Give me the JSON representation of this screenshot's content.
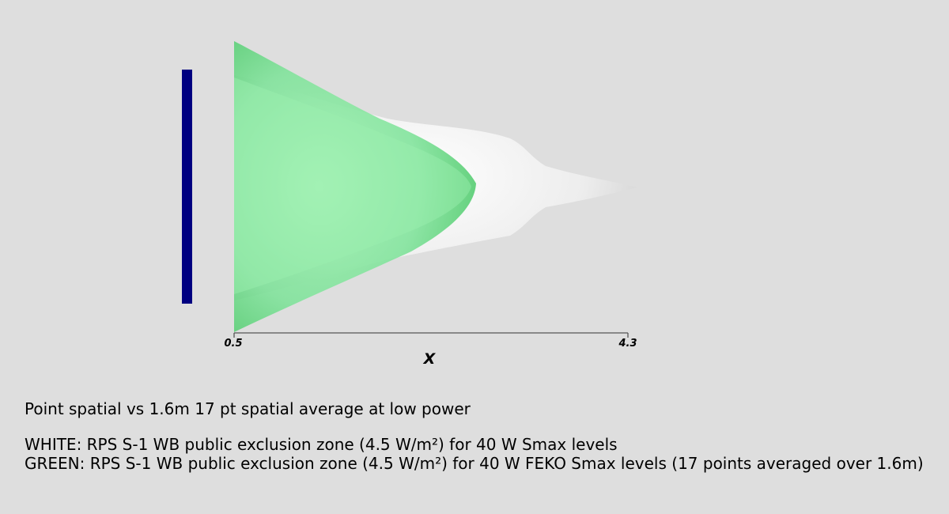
{
  "axis": {
    "label": "X",
    "ticks": [
      "0.5",
      "4.3"
    ]
  },
  "caption": {
    "title": "Point spatial vs 1.6m 17 pt spatial average at low power",
    "white_line": "WHITE: RPS S-1 WB public exclusion zone (4.5 W/m²) for 40 W Smax levels",
    "green_line": "GREEN: RPS S-1 WB public exclusion zone (4.5 W/m²) for 40 W FEKO Smax levels (17 points averaged over 1.6m)"
  },
  "colors": {
    "background": "#dedede",
    "antenna": "#000080",
    "white_zone": "#f0f0f0",
    "green_zone": "#5ad27a"
  }
}
